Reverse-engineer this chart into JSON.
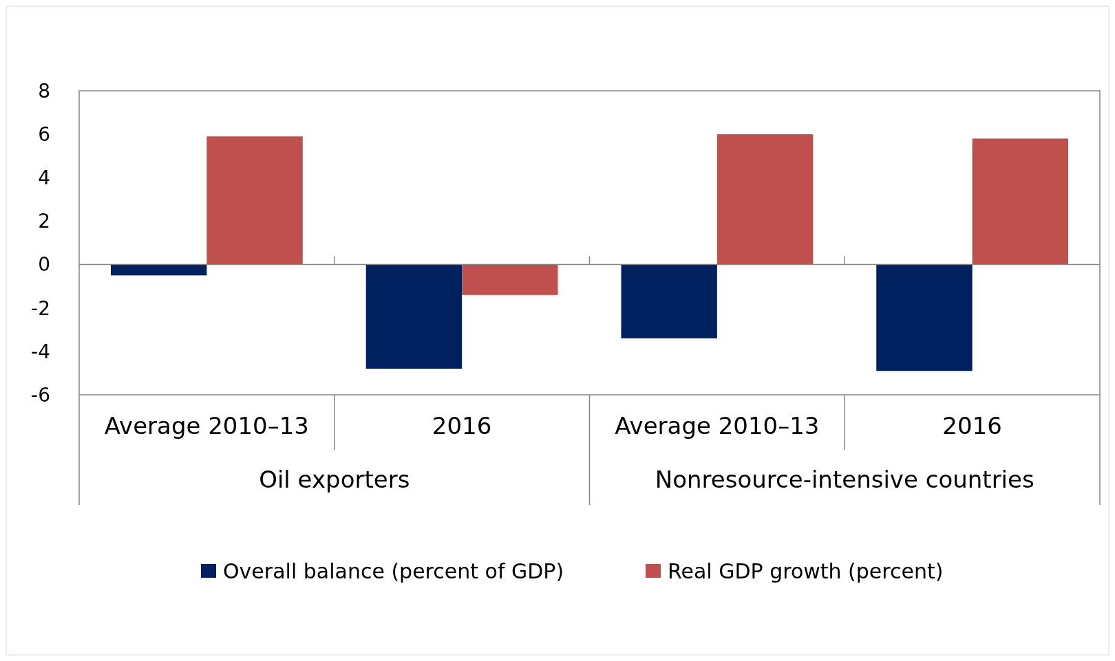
{
  "chart_data": {
    "type": "bar",
    "categories": [
      "Average 2010–13",
      "2016",
      "Average 2010–13",
      "2016"
    ],
    "series": [
      {
        "name": "Overall balance (percent of GDP)",
        "color": "#002060",
        "values": [
          -0.5,
          -4.8,
          -3.4,
          -4.9
        ]
      },
      {
        "name": "Real GDP growth (percent)",
        "color": "#c0504d",
        "values": [
          5.9,
          -1.4,
          6.0,
          5.8
        ]
      }
    ],
    "annotations": [
      "Oil exporters",
      "Nonresource-intensive countries"
    ],
    "ylim": [
      -6,
      8
    ],
    "yticks": [
      -6,
      -4,
      -2,
      0,
      2,
      4,
      6,
      8
    ],
    "legend": "bottom"
  }
}
